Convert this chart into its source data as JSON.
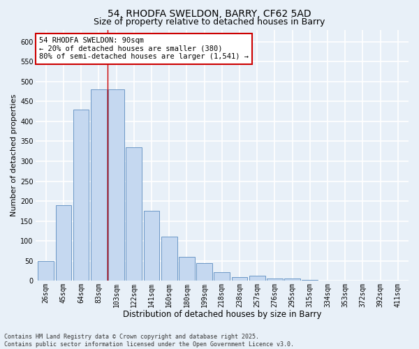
{
  "title1": "54, RHODFA SWELDON, BARRY, CF62 5AD",
  "title2": "Size of property relative to detached houses in Barry",
  "xlabel": "Distribution of detached houses by size in Barry",
  "ylabel": "Number of detached properties",
  "categories": [
    "26sqm",
    "45sqm",
    "64sqm",
    "83sqm",
    "103sqm",
    "122sqm",
    "141sqm",
    "160sqm",
    "180sqm",
    "199sqm",
    "218sqm",
    "238sqm",
    "257sqm",
    "276sqm",
    "295sqm",
    "315sqm",
    "334sqm",
    "353sqm",
    "372sqm",
    "392sqm",
    "411sqm"
  ],
  "values": [
    50,
    190,
    430,
    480,
    480,
    335,
    175,
    110,
    60,
    45,
    22,
    10,
    12,
    5,
    6,
    3,
    1,
    1,
    0,
    1,
    0
  ],
  "bar_color": "#c5d8f0",
  "bar_edge_color": "#5a8bbf",
  "red_line_x": 3.5,
  "annotation_text": "54 RHODFA SWELDON: 90sqm\n← 20% of detached houses are smaller (380)\n80% of semi-detached houses are larger (1,541) →",
  "annotation_box_color": "#ffffff",
  "annotation_box_edge": "#cc0000",
  "ylim": [
    0,
    630
  ],
  "yticks": [
    0,
    50,
    100,
    150,
    200,
    250,
    300,
    350,
    400,
    450,
    500,
    550,
    600
  ],
  "background_color": "#e8f0f8",
  "grid_color": "#ffffff",
  "footer": "Contains HM Land Registry data © Crown copyright and database right 2025.\nContains public sector information licensed under the Open Government Licence v3.0.",
  "title_fontsize": 10,
  "subtitle_fontsize": 9,
  "xlabel_fontsize": 8.5,
  "ylabel_fontsize": 8,
  "tick_fontsize": 7,
  "annotation_fontsize": 7.5,
  "footer_fontsize": 6
}
